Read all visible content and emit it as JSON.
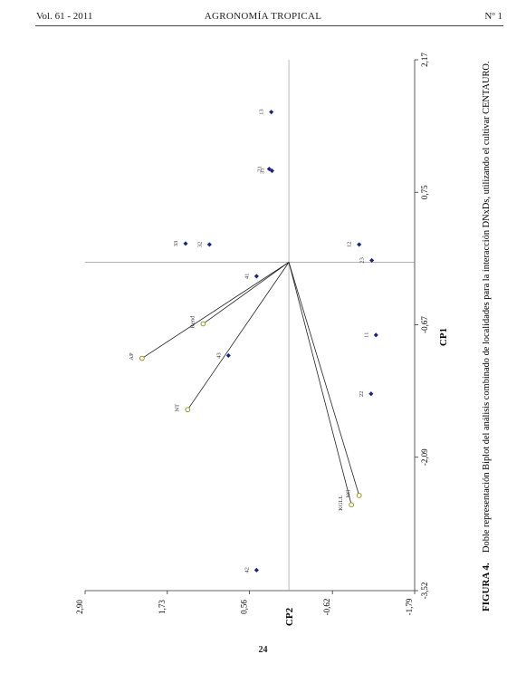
{
  "header": {
    "volume": "Vol. 61  - 2011",
    "journal": "AGRONOMÍA TROPICAL",
    "number": "Nº 1"
  },
  "page_number": "24",
  "figure": {
    "label": "FIGURA 4.",
    "caption": "Doble representación Biplot del análisis combinado de localidades para la interacción DNxDs, utilizando el cultivar CENTAURO."
  },
  "chart_data": {
    "type": "scatter",
    "xlabel": "CP1",
    "ylabel": "CP2",
    "xlim": [
      -3.52,
      2.17
    ],
    "ylim": [
      -1.79,
      2.9
    ],
    "x_ticks": [
      "-3,52",
      "-2,09",
      "-0,67",
      "0,75",
      "2,17"
    ],
    "y_ticks": [
      "-1,79",
      "-0,62",
      "0,56",
      "1,73",
      "2,90"
    ],
    "points": [
      {
        "label": "13",
        "x": 1.61,
        "y": 0.25
      },
      {
        "label": "21",
        "x": 1.0,
        "y": 0.28
      },
      {
        "label": "31",
        "x": 0.98,
        "y": 0.24
      },
      {
        "label": "12",
        "x": 0.19,
        "y": -1.0
      },
      {
        "label": "23",
        "x": 0.02,
        "y": -1.18
      },
      {
        "label": "33",
        "x": 0.2,
        "y": 1.47
      },
      {
        "label": "32",
        "x": 0.19,
        "y": 1.13
      },
      {
        "label": "41",
        "x": -0.15,
        "y": 0.46
      },
      {
        "label": "11",
        "x": -0.78,
        "y": -1.24
      },
      {
        "label": "43",
        "x": -1.0,
        "y": 0.86
      },
      {
        "label": "22",
        "x": -1.41,
        "y": -1.17
      },
      {
        "label": "42",
        "x": -3.3,
        "y": 0.46
      }
    ],
    "vectors": [
      {
        "label": "AP",
        "x": -1.03,
        "y": 2.09
      },
      {
        "label": "Rend",
        "x": -0.66,
        "y": 1.22
      },
      {
        "label": "NT",
        "x": -1.58,
        "y": 1.44
      },
      {
        "label": "NG",
        "x": -2.5,
        "y": -1.0
      },
      {
        "label": "KGLL",
        "x": -2.6,
        "y": -0.89
      }
    ],
    "origin": {
      "x": 0.0,
      "y": 0.0
    },
    "grid": false
  }
}
